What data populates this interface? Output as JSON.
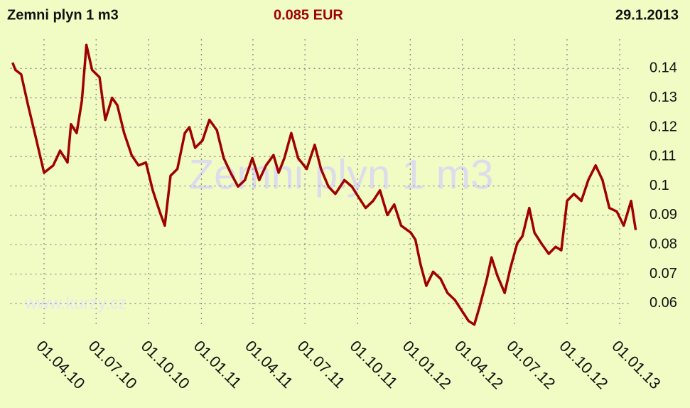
{
  "chart_data": {
    "type": "line",
    "title": "Zemni plyn 1 m3",
    "price": "0.085 EUR",
    "date": "29.1.2013",
    "watermark": "Zemni plyn 1 m3",
    "source": "www.kurzy.cz",
    "color": "#a00000",
    "grid": true,
    "x": [
      "05.02.10",
      "10.02.10",
      "20.02.10",
      "04.03.10",
      "17.03.10",
      "01.04.10",
      "17.04.10",
      "29.04.10",
      "12.05.10",
      "18.05.10",
      "28.05.10",
      "06.06.10",
      "14.06.10",
      "24.06.10",
      "07.07.10",
      "17.07.10",
      "29.07.10",
      "07.08.10",
      "19.08.10",
      "01.09.10",
      "13.09.10",
      "26.09.10",
      "08.10.10",
      "20.10.10",
      "29.10.10",
      "08.11.10",
      "20.11.10",
      "03.12.10",
      "11.12.10",
      "21.12.10",
      "03.01.11",
      "15.01.11",
      "28.01.11",
      "09.02.11",
      "21.02.11",
      "06.03.11",
      "18.03.11",
      "31.03.11",
      "12.04.11",
      "24.04.11",
      "07.05.11",
      "16.05.11",
      "26.05.11",
      "07.06.11",
      "19.06.11",
      "04.07.11",
      "18.07.11",
      "29.07.11",
      "11.08.11",
      "23.08.11",
      "08.09.11",
      "21.09.11",
      "03.10.11",
      "15.10.11",
      "28.10.11",
      "09.11.11",
      "22.11.11",
      "04.12.11",
      "16.12.11",
      "02.01.12",
      "10.01.12",
      "19.01.12",
      "29.01.12",
      "10.02.12",
      "23.02.12",
      "06.03.12",
      "19.03.12",
      "31.03.12",
      "12.04.12",
      "22.04.12",
      "01.05.12",
      "14.05.12",
      "22.05.12",
      "01.06.12",
      "14.06.12",
      "24.06.12",
      "06.07.12",
      "15.07.12",
      "27.07.12",
      "05.08.12",
      "17.08.12",
      "30.08.12",
      "11.09.12",
      "21.09.12",
      "01.10.12",
      "13.10.12",
      "26.10.12",
      "07.11.12",
      "20.11.12",
      "02.12.12",
      "14.12.12",
      "27.12.12",
      "08.01.13",
      "21.01.13",
      "29.01.13"
    ],
    "values": [
      0.142,
      0.1395,
      0.138,
      0.1275,
      0.117,
      0.1045,
      0.107,
      0.112,
      0.108,
      0.121,
      0.118,
      0.129,
      0.148,
      0.1395,
      0.137,
      0.1225,
      0.13,
      0.1275,
      0.118,
      0.1105,
      0.107,
      0.108,
      0.0985,
      0.0913,
      0.0865,
      0.1035,
      0.1058,
      0.118,
      0.12,
      0.113,
      0.1155,
      0.1225,
      0.119,
      0.1095,
      0.1045,
      0.0998,
      0.102,
      0.1095,
      0.102,
      0.107,
      0.1105,
      0.1045,
      0.1095,
      0.118,
      0.1095,
      0.1058,
      0.114,
      0.1058,
      0.0998,
      0.0973,
      0.102,
      0.0998,
      0.0961,
      0.0925,
      0.0949,
      0.0985,
      0.0901,
      0.0937,
      0.0865,
      0.0841,
      0.0817,
      0.0733,
      0.066,
      0.0708,
      0.0684,
      0.0636,
      0.0612,
      0.0576,
      0.054,
      0.0528,
      0.0588,
      0.0684,
      0.0757,
      0.0696,
      0.0636,
      0.072,
      0.0805,
      0.0829,
      0.0925,
      0.0841,
      0.0805,
      0.0769,
      0.0793,
      0.0781,
      0.0949,
      0.0973,
      0.0949,
      0.102,
      0.107,
      0.102,
      0.0925,
      0.0913,
      0.0865,
      0.0949,
      0.085
    ],
    "xlim": [
      "01.02.10",
      "01.02.13"
    ],
    "xticks": [
      "01.04.10",
      "01.07.10",
      "01.10.10",
      "01.01.11",
      "01.04.11",
      "01.07.11",
      "01.10.11",
      "01.01.12",
      "01.04.12",
      "01.07.12",
      "01.10.12",
      "01.01.13"
    ],
    "ylim": [
      0.052,
      0.15
    ],
    "yticks": [
      0.06,
      0.07,
      0.08,
      0.09,
      0.1,
      0.11,
      0.12,
      0.13,
      0.14
    ]
  }
}
